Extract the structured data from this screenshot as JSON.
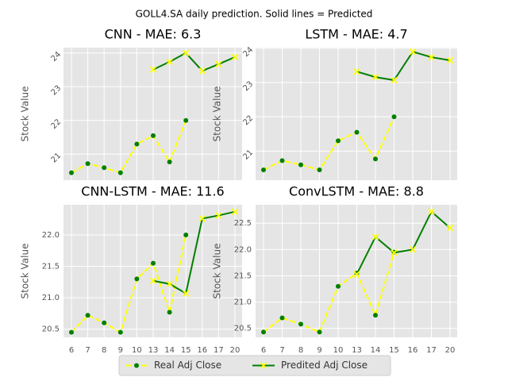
{
  "title": "GOLL4.SA daily prediction. Solid lines = Predicted",
  "legend": [
    "Real Adj Close",
    "Predited Adj Close"
  ],
  "chart_data": [
    {
      "type": "line",
      "title": "CNN - MAE: 6.3",
      "ylabel": "Stock Value",
      "ylim": [
        20.23,
        24.16
      ],
      "yticks": [
        21,
        22,
        23,
        24
      ],
      "ytick_rotation": 45,
      "grid": true,
      "series": [
        {
          "values": [
            20.45,
            20.72,
            20.6,
            20.45,
            21.3,
            21.55,
            20.77,
            22.0,
            null,
            null,
            null
          ],
          "line_color": "#ffff00",
          "marker_color": "#007f00",
          "line_style": "dashed",
          "marker": "o"
        },
        {
          "values": [
            null,
            null,
            null,
            null,
            null,
            23.51,
            23.74,
            24.0,
            23.47,
            23.67,
            23.88
          ],
          "line_color": "#007f00",
          "marker_color": "#ffff00",
          "line_style": "solid",
          "marker": "x"
        }
      ]
    },
    {
      "type": "line",
      "title": "LSTM - MAE: 4.7",
      "ylabel": "Stock Value",
      "ylim": [
        20.15,
        24.02
      ],
      "yticks": [
        21,
        22,
        23,
        24
      ],
      "ytick_rotation": 45,
      "grid": true,
      "series": [
        {
          "values": [
            20.45,
            20.72,
            20.6,
            20.45,
            21.3,
            21.55,
            20.77,
            22.0,
            null,
            null,
            null
          ],
          "line_color": "#ffff00",
          "marker_color": "#007f00",
          "line_style": "dashed",
          "marker": "o"
        },
        {
          "values": [
            null,
            null,
            null,
            null,
            null,
            23.32,
            23.16,
            23.07,
            23.9,
            23.74,
            23.65
          ],
          "line_color": "#007f00",
          "marker_color": "#ffff00",
          "line_style": "solid",
          "marker": "x"
        }
      ]
    },
    {
      "type": "line",
      "title": "CNN-LSTM - MAE: 11.6",
      "ylabel": "Stock Value",
      "categories": [
        "6",
        "7",
        "8",
        "9",
        "10",
        "13",
        "14",
        "15",
        "16",
        "17",
        "20"
      ],
      "ylim": [
        20.37,
        22.48
      ],
      "yticks": [
        20.5,
        {
          "value": 21,
          "label": "21.0"
        },
        21.5,
        {
          "value": 22,
          "label": "22.0"
        }
      ],
      "ytick_rotation": 0,
      "grid": true,
      "series": [
        {
          "values": [
            20.45,
            20.72,
            20.6,
            20.45,
            21.3,
            21.55,
            20.77,
            22.0,
            null,
            null,
            null
          ],
          "line_color": "#ffff00",
          "marker_color": "#007f00",
          "line_style": "dashed",
          "marker": "o"
        },
        {
          "values": [
            null,
            null,
            null,
            null,
            null,
            21.27,
            21.22,
            21.07,
            22.26,
            22.31,
            22.37
          ],
          "line_color": "#007f00",
          "marker_color": "#ffff00",
          "line_style": "solid",
          "marker": "x"
        }
      ]
    },
    {
      "type": "line",
      "title": "ConvLSTM - MAE: 8.8",
      "ylabel": "Stock Value",
      "categories": [
        "6",
        "7",
        "8",
        "9",
        "10",
        "13",
        "14",
        "15",
        "16",
        "17",
        "20"
      ],
      "ylim": [
        20.33,
        22.85
      ],
      "yticks": [
        20.5,
        {
          "value": 21,
          "label": "21.0"
        },
        21.5,
        {
          "value": 22,
          "label": "22.0"
        },
        22.5
      ],
      "ytick_rotation": 0,
      "grid": true,
      "series": [
        {
          "values": [
            20.43,
            20.7,
            20.58,
            20.43,
            21.3,
            21.55,
            20.75,
            21.95,
            null,
            null,
            null
          ],
          "line_color": "#ffff00",
          "marker_color": "#007f00",
          "line_style": "dashed",
          "marker": "o"
        },
        {
          "values": [
            null,
            null,
            null,
            null,
            null,
            21.53,
            22.24,
            21.94,
            22.0,
            22.72,
            22.41
          ],
          "line_color": "#007f00",
          "marker_color": "#ffff00",
          "line_style": "solid",
          "marker": "x"
        }
      ]
    }
  ]
}
